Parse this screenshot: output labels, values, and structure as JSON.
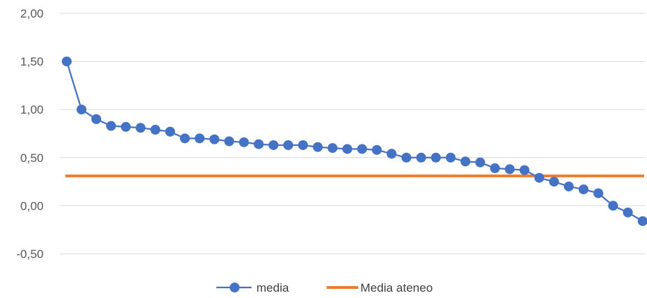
{
  "chart_data": {
    "type": "line",
    "title": "",
    "xlabel": "",
    "ylabel": "",
    "ylim": [
      -0.5,
      2.0
    ],
    "yticks": [
      "2,00",
      "1,50",
      "1,00",
      "0,50",
      "0,00",
      "-0,50"
    ],
    "ytick_values": [
      2.0,
      1.5,
      1.0,
      0.5,
      0.0,
      -0.5
    ],
    "grid": true,
    "legend_position": "bottom",
    "series": [
      {
        "name": "media",
        "color": "#4472C4",
        "marker": "circle",
        "values": [
          1.5,
          1.0,
          0.9,
          0.83,
          0.82,
          0.81,
          0.79,
          0.77,
          0.7,
          0.7,
          0.69,
          0.67,
          0.66,
          0.64,
          0.63,
          0.63,
          0.63,
          0.61,
          0.6,
          0.59,
          0.59,
          0.58,
          0.54,
          0.5,
          0.5,
          0.5,
          0.5,
          0.46,
          0.45,
          0.39,
          0.38,
          0.37,
          0.29,
          0.25,
          0.2,
          0.17,
          0.13,
          0.0,
          -0.07,
          -0.16
        ]
      },
      {
        "name": "Media ateneo",
        "color": "#ED7D31",
        "marker": "none",
        "constant": 0.31
      }
    ]
  }
}
